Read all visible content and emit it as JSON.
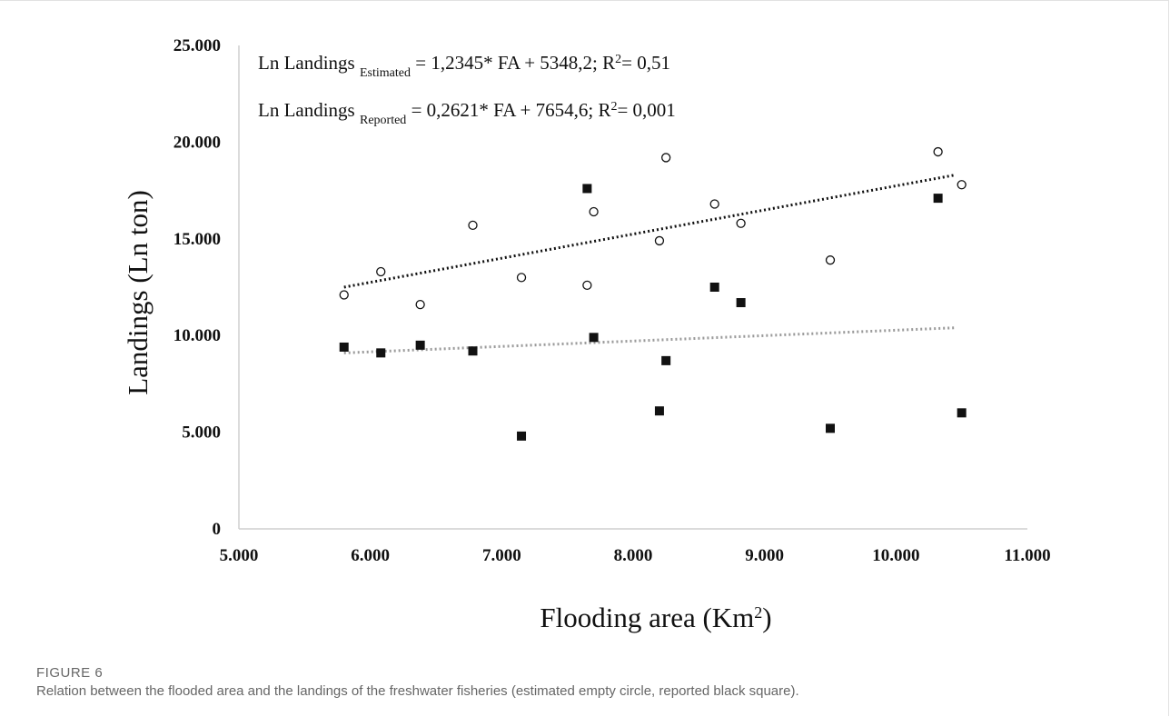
{
  "figure": {
    "label": "FIGURE 6",
    "caption": "Relation between the flooded area and the landings of the freshwater fisheries (estimated empty circle, reported black square)."
  },
  "chart_data": {
    "type": "scatter",
    "xlabel_main": "Flooding area (Km",
    "xlabel_sup": "2",
    "xlabel_end": ")",
    "ylabel": "Landings (Ln ton)",
    "xlim": [
      5000,
      11000
    ],
    "ylim": [
      0,
      25000
    ],
    "x_ticks": [
      5000,
      6000,
      7000,
      8000,
      9000,
      10000,
      11000
    ],
    "x_tick_labels": [
      "5.000",
      "6.000",
      "7.000",
      "8.000",
      "9.000",
      "10.000",
      "11.000"
    ],
    "y_ticks": [
      0,
      5000,
      10000,
      15000,
      20000,
      25000
    ],
    "y_tick_labels": [
      "0",
      "5.000",
      "10.000",
      "15.000",
      "20.000",
      "25.000"
    ],
    "grid": false,
    "annotations": [
      {
        "prefix": "Ln Landings ",
        "sub": "Estimated",
        "mid": " = 1,2345* FA + 5348,2; R",
        "sup": "2",
        "end": "= 0,51"
      },
      {
        "prefix": "Ln Landings ",
        "sub": "Reported",
        "mid": " = 0,2621* FA + 7654,6; R",
        "sup": "2",
        "end": "= 0,001"
      }
    ],
    "series": [
      {
        "marker": "circle-open",
        "points": [
          [
            5800,
            12100
          ],
          [
            6080,
            13300
          ],
          [
            6380,
            11600
          ],
          [
            6780,
            15700
          ],
          [
            7150,
            13000
          ],
          [
            7650,
            12600
          ],
          [
            7700,
            16400
          ],
          [
            8200,
            14900
          ],
          [
            8250,
            19200
          ],
          [
            8620,
            16800
          ],
          [
            8820,
            15800
          ],
          [
            9500,
            13900
          ],
          [
            10320,
            19500
          ],
          [
            10500,
            17800
          ]
        ],
        "trend": {
          "x": [
            5800,
            10450
          ],
          "y": [
            12500,
            18300
          ],
          "color": "#111111"
        }
      },
      {
        "marker": "square-filled",
        "points": [
          [
            5800,
            9400
          ],
          [
            6080,
            9100
          ],
          [
            6380,
            9500
          ],
          [
            6780,
            9200
          ],
          [
            7150,
            4800
          ],
          [
            7650,
            17600
          ],
          [
            7700,
            9900
          ],
          [
            8200,
            6100
          ],
          [
            8250,
            8700
          ],
          [
            8620,
            12500
          ],
          [
            8820,
            11700
          ],
          [
            9500,
            5200
          ],
          [
            10320,
            17100
          ],
          [
            10500,
            6000
          ]
        ],
        "trend": {
          "x": [
            5800,
            10450
          ],
          "y": [
            9100,
            10400
          ],
          "color": "#9a9a9a"
        }
      }
    ]
  }
}
